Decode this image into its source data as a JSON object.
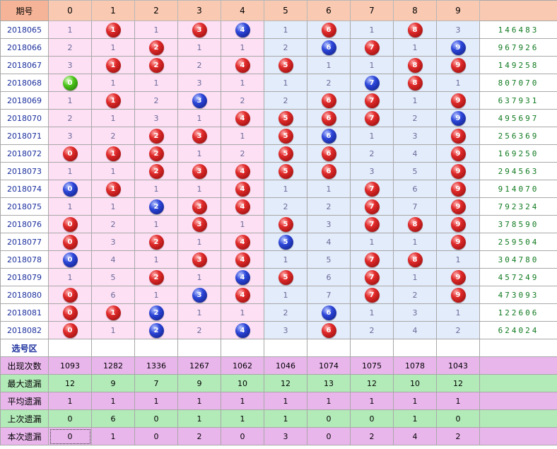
{
  "header": {
    "period_label": "期号",
    "digits": [
      "0",
      "1",
      "2",
      "3",
      "4",
      "5",
      "6",
      "7",
      "8",
      "9"
    ],
    "result_label": ""
  },
  "colors": {
    "hit_default": "red",
    "hit_repeat": "blue",
    "first_draw": "green"
  },
  "rows": [
    {
      "period": "2018065",
      "result": "146483",
      "cells": [
        {
          "v": "1",
          "b": ""
        },
        {
          "v": "1",
          "b": "red"
        },
        {
          "v": "1",
          "b": ""
        },
        {
          "v": "3",
          "b": "red"
        },
        {
          "v": "4",
          "b": "blue"
        },
        {
          "v": "1",
          "b": ""
        },
        {
          "v": "6",
          "b": "red"
        },
        {
          "v": "1",
          "b": ""
        },
        {
          "v": "8",
          "b": "red"
        },
        {
          "v": "3",
          "b": ""
        }
      ]
    },
    {
      "period": "2018066",
      "result": "967926",
      "cells": [
        {
          "v": "2",
          "b": ""
        },
        {
          "v": "1",
          "b": ""
        },
        {
          "v": "2",
          "b": "red"
        },
        {
          "v": "1",
          "b": ""
        },
        {
          "v": "1",
          "b": ""
        },
        {
          "v": "2",
          "b": ""
        },
        {
          "v": "6",
          "b": "blue"
        },
        {
          "v": "7",
          "b": "red"
        },
        {
          "v": "1",
          "b": ""
        },
        {
          "v": "9",
          "b": "blue"
        }
      ]
    },
    {
      "period": "2018067",
      "result": "149258",
      "cells": [
        {
          "v": "3",
          "b": ""
        },
        {
          "v": "1",
          "b": "red"
        },
        {
          "v": "2",
          "b": "red"
        },
        {
          "v": "2",
          "b": ""
        },
        {
          "v": "4",
          "b": "red"
        },
        {
          "v": "5",
          "b": "red"
        },
        {
          "v": "1",
          "b": ""
        },
        {
          "v": "1",
          "b": ""
        },
        {
          "v": "8",
          "b": "red"
        },
        {
          "v": "9",
          "b": "red"
        }
      ]
    },
    {
      "period": "2018068",
      "result": "807070",
      "cells": [
        {
          "v": "0",
          "b": "green"
        },
        {
          "v": "1",
          "b": ""
        },
        {
          "v": "1",
          "b": ""
        },
        {
          "v": "3",
          "b": ""
        },
        {
          "v": "1",
          "b": ""
        },
        {
          "v": "1",
          "b": ""
        },
        {
          "v": "2",
          "b": ""
        },
        {
          "v": "7",
          "b": "blue"
        },
        {
          "v": "8",
          "b": "red"
        },
        {
          "v": "1",
          "b": ""
        }
      ]
    },
    {
      "period": "2018069",
      "result": "637931",
      "cells": [
        {
          "v": "1",
          "b": ""
        },
        {
          "v": "1",
          "b": "red"
        },
        {
          "v": "2",
          "b": ""
        },
        {
          "v": "3",
          "b": "blue"
        },
        {
          "v": "2",
          "b": ""
        },
        {
          "v": "2",
          "b": ""
        },
        {
          "v": "6",
          "b": "red"
        },
        {
          "v": "7",
          "b": "red"
        },
        {
          "v": "1",
          "b": ""
        },
        {
          "v": "9",
          "b": "red"
        }
      ]
    },
    {
      "period": "2018070",
      "result": "495697",
      "cells": [
        {
          "v": "2",
          "b": ""
        },
        {
          "v": "1",
          "b": ""
        },
        {
          "v": "3",
          "b": ""
        },
        {
          "v": "1",
          "b": ""
        },
        {
          "v": "4",
          "b": "red"
        },
        {
          "v": "5",
          "b": "red"
        },
        {
          "v": "6",
          "b": "red"
        },
        {
          "v": "7",
          "b": "red"
        },
        {
          "v": "2",
          "b": ""
        },
        {
          "v": "9",
          "b": "blue"
        }
      ]
    },
    {
      "period": "2018071",
      "result": "256369",
      "cells": [
        {
          "v": "3",
          "b": ""
        },
        {
          "v": "2",
          "b": ""
        },
        {
          "v": "2",
          "b": "red"
        },
        {
          "v": "3",
          "b": "red"
        },
        {
          "v": "1",
          "b": ""
        },
        {
          "v": "5",
          "b": "red"
        },
        {
          "v": "6",
          "b": "blue"
        },
        {
          "v": "1",
          "b": ""
        },
        {
          "v": "3",
          "b": ""
        },
        {
          "v": "9",
          "b": "red"
        }
      ]
    },
    {
      "period": "2018072",
      "result": "169250",
      "cells": [
        {
          "v": "0",
          "b": "red"
        },
        {
          "v": "1",
          "b": "red"
        },
        {
          "v": "2",
          "b": "red"
        },
        {
          "v": "1",
          "b": ""
        },
        {
          "v": "2",
          "b": ""
        },
        {
          "v": "5",
          "b": "red"
        },
        {
          "v": "6",
          "b": "red"
        },
        {
          "v": "2",
          "b": ""
        },
        {
          "v": "4",
          "b": ""
        },
        {
          "v": "9",
          "b": "red"
        }
      ]
    },
    {
      "period": "2018073",
      "result": "294563",
      "cells": [
        {
          "v": "1",
          "b": ""
        },
        {
          "v": "1",
          "b": ""
        },
        {
          "v": "2",
          "b": "red"
        },
        {
          "v": "3",
          "b": "red"
        },
        {
          "v": "4",
          "b": "red"
        },
        {
          "v": "5",
          "b": "red"
        },
        {
          "v": "6",
          "b": "red"
        },
        {
          "v": "3",
          "b": ""
        },
        {
          "v": "5",
          "b": ""
        },
        {
          "v": "9",
          "b": "red"
        }
      ]
    },
    {
      "period": "2018074",
      "result": "914070",
      "cells": [
        {
          "v": "0",
          "b": "blue"
        },
        {
          "v": "1",
          "b": "red"
        },
        {
          "v": "1",
          "b": ""
        },
        {
          "v": "1",
          "b": ""
        },
        {
          "v": "4",
          "b": "red"
        },
        {
          "v": "1",
          "b": ""
        },
        {
          "v": "1",
          "b": ""
        },
        {
          "v": "7",
          "b": "red"
        },
        {
          "v": "6",
          "b": ""
        },
        {
          "v": "9",
          "b": "red"
        }
      ]
    },
    {
      "period": "2018075",
      "result": "792324",
      "cells": [
        {
          "v": "1",
          "b": ""
        },
        {
          "v": "1",
          "b": ""
        },
        {
          "v": "2",
          "b": "blue"
        },
        {
          "v": "3",
          "b": "red"
        },
        {
          "v": "4",
          "b": "red"
        },
        {
          "v": "2",
          "b": ""
        },
        {
          "v": "2",
          "b": ""
        },
        {
          "v": "7",
          "b": "red"
        },
        {
          "v": "7",
          "b": ""
        },
        {
          "v": "9",
          "b": "red"
        }
      ]
    },
    {
      "period": "2018076",
      "result": "378590",
      "cells": [
        {
          "v": "0",
          "b": "red"
        },
        {
          "v": "2",
          "b": ""
        },
        {
          "v": "1",
          "b": ""
        },
        {
          "v": "3",
          "b": "red"
        },
        {
          "v": "1",
          "b": ""
        },
        {
          "v": "5",
          "b": "red"
        },
        {
          "v": "3",
          "b": ""
        },
        {
          "v": "7",
          "b": "red"
        },
        {
          "v": "8",
          "b": "red"
        },
        {
          "v": "9",
          "b": "red"
        }
      ]
    },
    {
      "period": "2018077",
      "result": "259504",
      "cells": [
        {
          "v": "0",
          "b": "red"
        },
        {
          "v": "3",
          "b": ""
        },
        {
          "v": "2",
          "b": "red"
        },
        {
          "v": "1",
          "b": ""
        },
        {
          "v": "4",
          "b": "red"
        },
        {
          "v": "5",
          "b": "blue"
        },
        {
          "v": "4",
          "b": ""
        },
        {
          "v": "1",
          "b": ""
        },
        {
          "v": "1",
          "b": ""
        },
        {
          "v": "9",
          "b": "red"
        }
      ]
    },
    {
      "period": "2018078",
      "result": "304780",
      "cells": [
        {
          "v": "0",
          "b": "blue"
        },
        {
          "v": "4",
          "b": ""
        },
        {
          "v": "1",
          "b": ""
        },
        {
          "v": "3",
          "b": "red"
        },
        {
          "v": "4",
          "b": "red"
        },
        {
          "v": "1",
          "b": ""
        },
        {
          "v": "5",
          "b": ""
        },
        {
          "v": "7",
          "b": "red"
        },
        {
          "v": "8",
          "b": "red"
        },
        {
          "v": "1",
          "b": ""
        }
      ]
    },
    {
      "period": "2018079",
      "result": "457249",
      "cells": [
        {
          "v": "1",
          "b": ""
        },
        {
          "v": "5",
          "b": ""
        },
        {
          "v": "2",
          "b": "red"
        },
        {
          "v": "1",
          "b": ""
        },
        {
          "v": "4",
          "b": "blue"
        },
        {
          "v": "5",
          "b": "red"
        },
        {
          "v": "6",
          "b": ""
        },
        {
          "v": "7",
          "b": "red"
        },
        {
          "v": "1",
          "b": ""
        },
        {
          "v": "9",
          "b": "red"
        }
      ]
    },
    {
      "period": "2018080",
      "result": "473093",
      "cells": [
        {
          "v": "0",
          "b": "red"
        },
        {
          "v": "6",
          "b": ""
        },
        {
          "v": "1",
          "b": ""
        },
        {
          "v": "3",
          "b": "blue"
        },
        {
          "v": "4",
          "b": "red"
        },
        {
          "v": "1",
          "b": ""
        },
        {
          "v": "7",
          "b": ""
        },
        {
          "v": "7",
          "b": "red"
        },
        {
          "v": "2",
          "b": ""
        },
        {
          "v": "9",
          "b": "red"
        }
      ]
    },
    {
      "period": "2018081",
      "result": "122606",
      "cells": [
        {
          "v": "0",
          "b": "red"
        },
        {
          "v": "1",
          "b": "red"
        },
        {
          "v": "2",
          "b": "blue"
        },
        {
          "v": "1",
          "b": ""
        },
        {
          "v": "1",
          "b": ""
        },
        {
          "v": "2",
          "b": ""
        },
        {
          "v": "6",
          "b": "blue"
        },
        {
          "v": "1",
          "b": ""
        },
        {
          "v": "3",
          "b": ""
        },
        {
          "v": "1",
          "b": ""
        }
      ]
    },
    {
      "period": "2018082",
      "result": "624024",
      "cells": [
        {
          "v": "0",
          "b": "red"
        },
        {
          "v": "1",
          "b": ""
        },
        {
          "v": "2",
          "b": "blue"
        },
        {
          "v": "2",
          "b": ""
        },
        {
          "v": "4",
          "b": "blue"
        },
        {
          "v": "3",
          "b": ""
        },
        {
          "v": "6",
          "b": "red"
        },
        {
          "v": "2",
          "b": ""
        },
        {
          "v": "4",
          "b": ""
        },
        {
          "v": "2",
          "b": ""
        }
      ]
    }
  ],
  "select_zone": {
    "label": "选号区"
  },
  "stats": [
    {
      "label": "出现次数",
      "style": "purple",
      "values": [
        "1093",
        "1282",
        "1336",
        "1267",
        "1062",
        "1046",
        "1074",
        "1075",
        "1078",
        "1043"
      ]
    },
    {
      "label": "最大遗漏",
      "style": "green",
      "values": [
        "12",
        "9",
        "7",
        "9",
        "10",
        "12",
        "13",
        "12",
        "10",
        "12"
      ]
    },
    {
      "label": "平均遗漏",
      "style": "purple",
      "values": [
        "1",
        "1",
        "1",
        "1",
        "1",
        "1",
        "1",
        "1",
        "1",
        "1"
      ]
    },
    {
      "label": "上次遗漏",
      "style": "green",
      "values": [
        "0",
        "6",
        "0",
        "1",
        "1",
        "1",
        "0",
        "0",
        "1",
        "0"
      ]
    },
    {
      "label": "本次遗漏",
      "style": "purple",
      "values": [
        "0",
        "1",
        "0",
        "2",
        "0",
        "3",
        "0",
        "2",
        "4",
        "2"
      ]
    }
  ]
}
